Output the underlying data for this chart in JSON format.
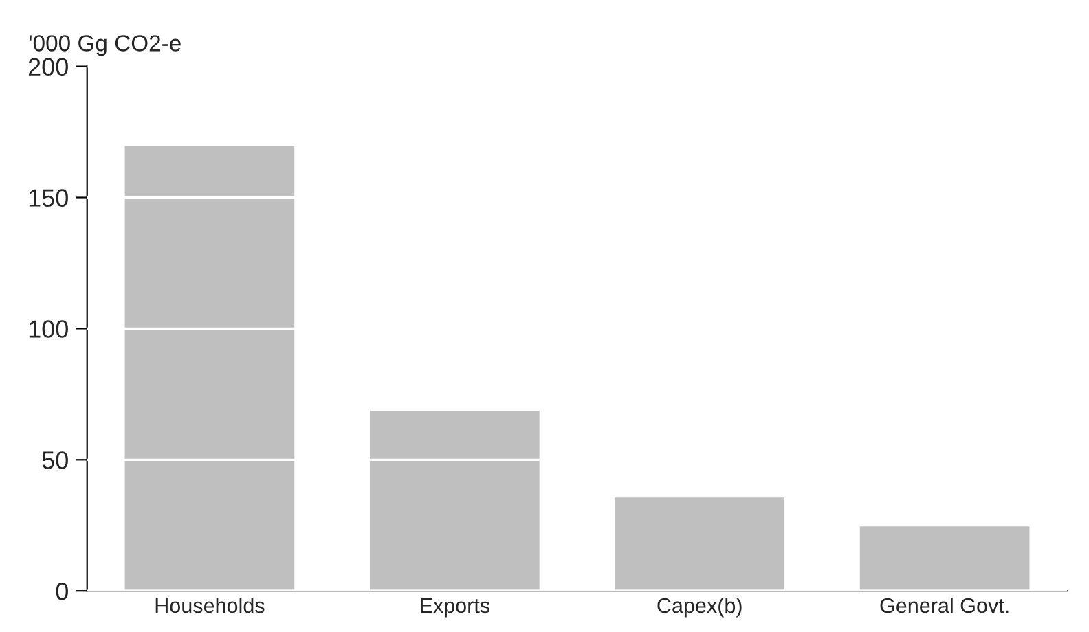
{
  "chart_data": {
    "type": "bar",
    "ylabel": "'000 Gg CO2-e",
    "categories": [
      "Households",
      "Exports",
      "Capex(b)",
      "General Govt."
    ],
    "values": [
      170,
      69,
      36,
      25
    ],
    "color": "#bfbfbf",
    "ylim": [
      0,
      200
    ],
    "yticks": [
      0,
      50,
      100,
      150,
      200
    ],
    "grid": "y"
  }
}
